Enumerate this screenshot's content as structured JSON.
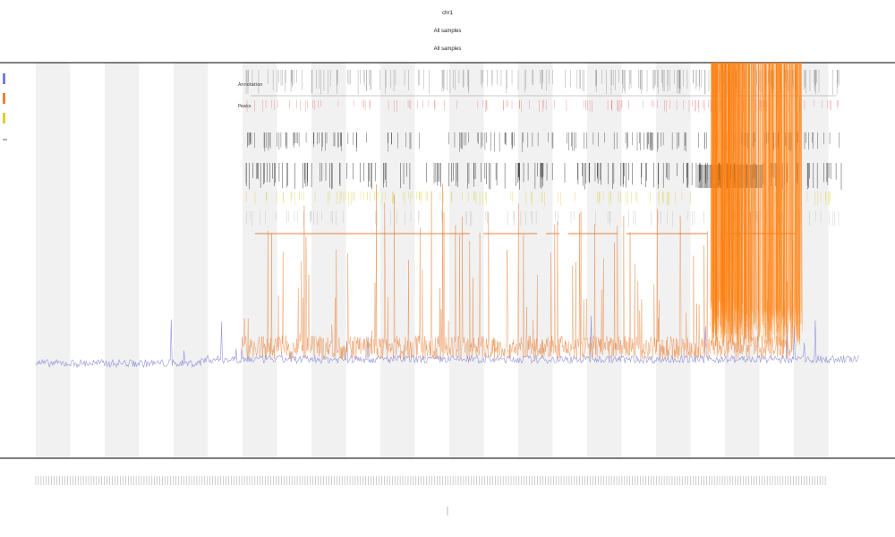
{
  "chart_data": {
    "type": "line",
    "title": [
      "chr1",
      "All samples",
      "All samples"
    ],
    "legend": {
      "placement": "top-left",
      "entries": [
        {
          "name": "",
          "color": "#7b7bd6"
        },
        {
          "name": "",
          "color": "#e8823a"
        },
        {
          "name": "",
          "color": "#d8cf3a"
        }
      ]
    },
    "grid": false,
    "shaded_bands": true,
    "x_label": "",
    "y_label": "",
    "xlim": [
      0,
      1
    ],
    "ylim": [
      0,
      1
    ],
    "tracks": [
      {
        "label": "Annotation",
        "color": "#777777"
      },
      {
        "label": "Peaks",
        "color": "#e06060"
      }
    ],
    "series": [
      {
        "color": "#7b7bd6",
        "baseline": 0.24,
        "noise": 0.02
      },
      {
        "color": "#e8823a",
        "baseline": 0.28,
        "noise": 0.06
      },
      {
        "color": "#ff7f0e",
        "burst_regions": [
          [
            0.82,
            0.86
          ],
          [
            0.86,
            0.93
          ]
        ]
      }
    ]
  },
  "colors": {
    "axis": "#333333",
    "band": "#f1f1f1",
    "blue": "#7b7bd6",
    "orange": "#e8823a",
    "bright_orange": "#ff7f0e",
    "yellow": "#d8cf3a",
    "black_marks": "#222222",
    "red_marks": "#e06060"
  }
}
